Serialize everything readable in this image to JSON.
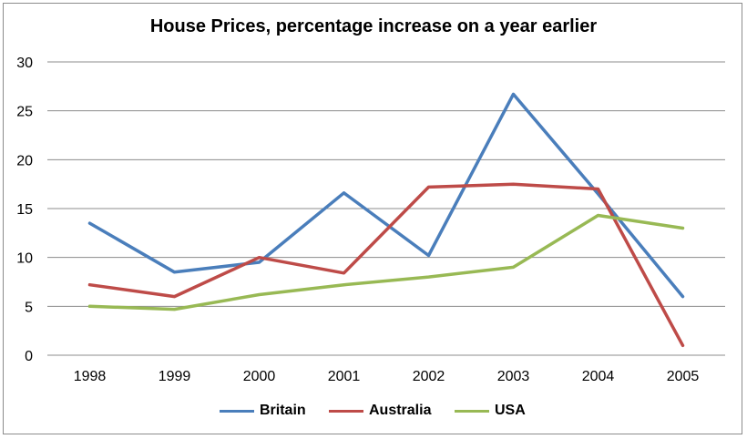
{
  "chart_data": {
    "type": "line",
    "title": "House Prices, percentage increase on a year earlier",
    "xlabel": "",
    "ylabel": "",
    "categories": [
      "1998",
      "1999",
      "2000",
      "2001",
      "2002",
      "2003",
      "2004",
      "2005"
    ],
    "ylim": [
      0,
      30
    ],
    "yticks": [
      "0",
      "5",
      "10",
      "15",
      "20",
      "25",
      "30"
    ],
    "grid": true,
    "legend_position": "bottom",
    "series": [
      {
        "name": "Britain",
        "color": "#4a7ebb",
        "values": [
          13.5,
          8.5,
          9.5,
          16.6,
          10.2,
          26.7,
          16.5,
          6.0
        ]
      },
      {
        "name": "Australia",
        "color": "#be4b48",
        "values": [
          7.2,
          6.0,
          10.0,
          8.4,
          17.2,
          17.5,
          17.0,
          1.0
        ]
      },
      {
        "name": "USA",
        "color": "#98b954",
        "values": [
          5.0,
          4.7,
          6.2,
          7.2,
          8.0,
          9.0,
          14.3,
          13.0
        ]
      }
    ]
  }
}
